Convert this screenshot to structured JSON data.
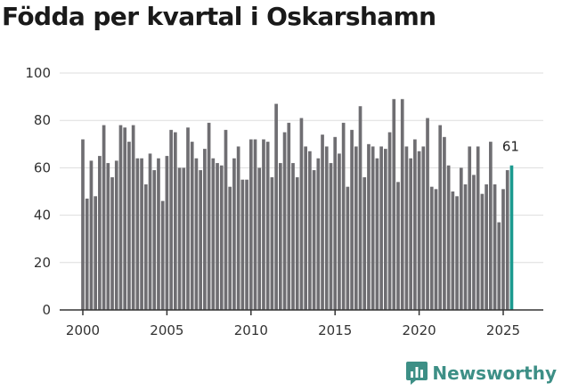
{
  "chart_data": {
    "type": "bar",
    "title": "Födda per kvartal i Oskarshamn",
    "xlabel": "",
    "ylabel": "",
    "xlim": [
      1999.4,
      2026.6
    ],
    "ylim": [
      0,
      100
    ],
    "y_ticks": [
      0,
      20,
      40,
      60,
      80,
      100
    ],
    "x_ticks": [
      2000,
      2005,
      2010,
      2015,
      2020,
      2025
    ],
    "grid": "horizontal",
    "start": {
      "year": 2000,
      "quarter": 1
    },
    "colors": {
      "bar": "#6f6e72",
      "highlight": "#1c9a8f",
      "grid": "#dddddd",
      "axis": "#333333"
    },
    "highlight_label": "61",
    "series": [
      {
        "name": "Födda",
        "values": [
          72,
          47,
          63,
          48,
          65,
          78,
          62,
          56,
          63,
          78,
          77,
          71,
          78,
          64,
          64,
          53,
          66,
          59,
          64,
          46,
          65,
          76,
          75,
          60,
          60,
          77,
          71,
          64,
          59,
          68,
          79,
          64,
          62,
          61,
          76,
          52,
          64,
          69,
          55,
          55,
          72,
          72,
          60,
          72,
          71,
          56,
          87,
          62,
          75,
          79,
          62,
          56,
          81,
          69,
          67,
          59,
          64,
          74,
          69,
          62,
          73,
          66,
          79,
          52,
          76,
          69,
          86,
          56,
          70,
          69,
          64,
          69,
          68,
          75,
          89,
          54,
          89,
          69,
          64,
          72,
          67,
          69,
          81,
          52,
          51,
          78,
          73,
          61,
          50,
          48,
          60,
          53,
          69,
          57,
          69,
          49,
          53,
          71,
          53,
          37,
          51,
          59,
          61
        ]
      }
    ]
  },
  "brand": {
    "name": "Newsworthy",
    "logo_icon": "bar-chart-speech-bubble-icon"
  }
}
